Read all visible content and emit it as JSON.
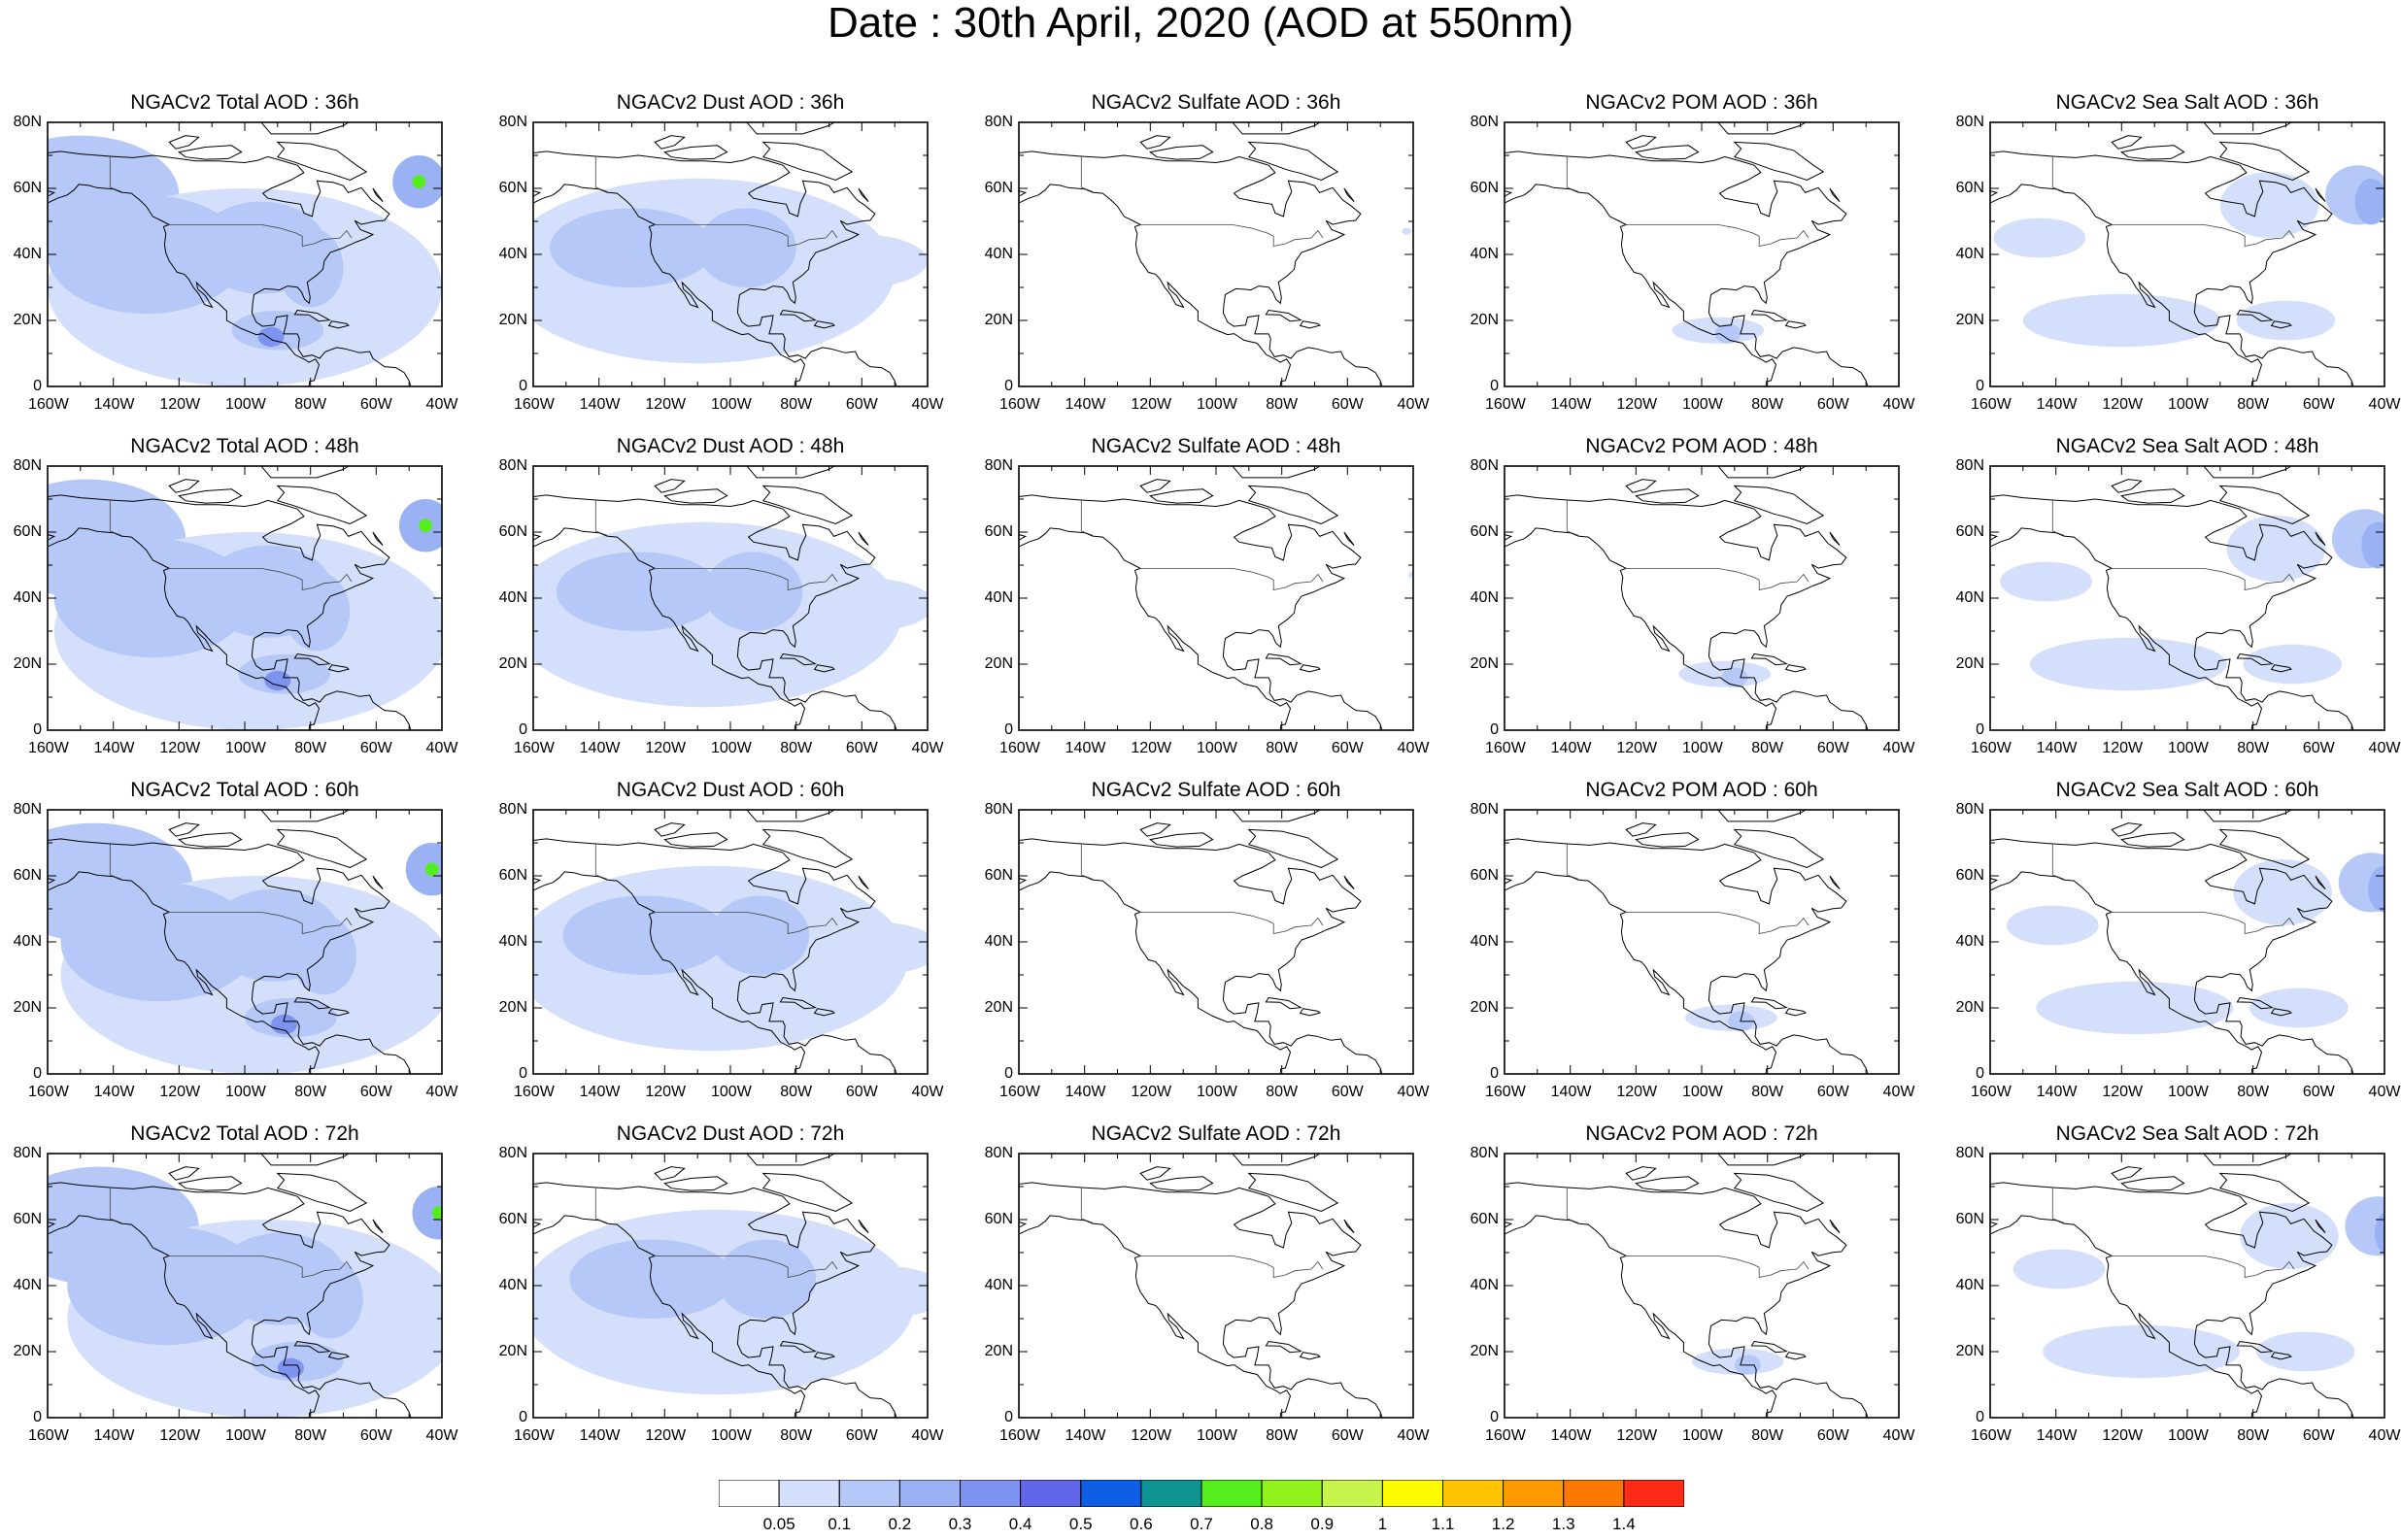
{
  "title": "Date : 30th April, 2020 (AOD at 550nm)",
  "columns": [
    {
      "species": "total",
      "titles": [
        "NGACv2 Total AOD : 36h",
        "NGACv2 Total AOD : 48h",
        "NGACv2 Total AOD : 60h",
        "NGACv2 Total AOD : 72h"
      ]
    },
    {
      "species": "dust",
      "titles": [
        "NGACv2 Dust AOD : 36h",
        "NGACv2 Dust AOD : 48h",
        "NGACv2 Dust AOD : 60h",
        "NGACv2 Dust AOD : 72h"
      ]
    },
    {
      "species": "sulfate",
      "titles": [
        "NGACv2 Sulfate AOD : 36h",
        "NGACv2 Sulfate AOD : 48h",
        "NGACv2 Sulfate AOD : 60h",
        "NGACv2 Sulfate AOD : 72h"
      ]
    },
    {
      "species": "pom",
      "titles": [
        "NGACv2 POM AOD : 36h",
        "NGACv2 POM AOD : 48h",
        "NGACv2 POM AOD : 60h",
        "NGACv2 POM AOD : 72h"
      ]
    },
    {
      "species": "seasalt",
      "titles": [
        "NGACv2 Sea Salt AOD : 36h",
        "NGACv2 Sea Salt AOD : 48h",
        "NGACv2 Sea Salt AOD : 60h",
        "NGACv2 Sea Salt  AOD : 72h"
      ]
    }
  ],
  "axes": {
    "lon_ticks": [
      "160W",
      "140W",
      "120W",
      "100W",
      "80W",
      "60W",
      "40W"
    ],
    "lat_ticks": [
      "0",
      "20N",
      "40N",
      "60N",
      "80N"
    ],
    "lon_range": [
      -160,
      -40
    ],
    "lat_range": [
      0,
      80
    ]
  },
  "colorbar": {
    "labels": [
      "0.05",
      "0.1",
      "0.2",
      "0.3",
      "0.4",
      "0.5",
      "0.6",
      "0.7",
      "0.8",
      "0.9",
      "1",
      "1.1",
      "1.2",
      "1.3",
      "1.4"
    ],
    "colors": [
      "#ffffff",
      "#d4e0fb",
      "#b5c8f7",
      "#9ab1f4",
      "#7e92f0",
      "#6166e8",
      "#0f5ee6",
      "#0e9593",
      "#55ed1c",
      "#92f21b",
      "#c6f44b",
      "#fdfb00",
      "#fec400",
      "#fe9a00",
      "#fd7800",
      "#fd2a17"
    ]
  }
}
